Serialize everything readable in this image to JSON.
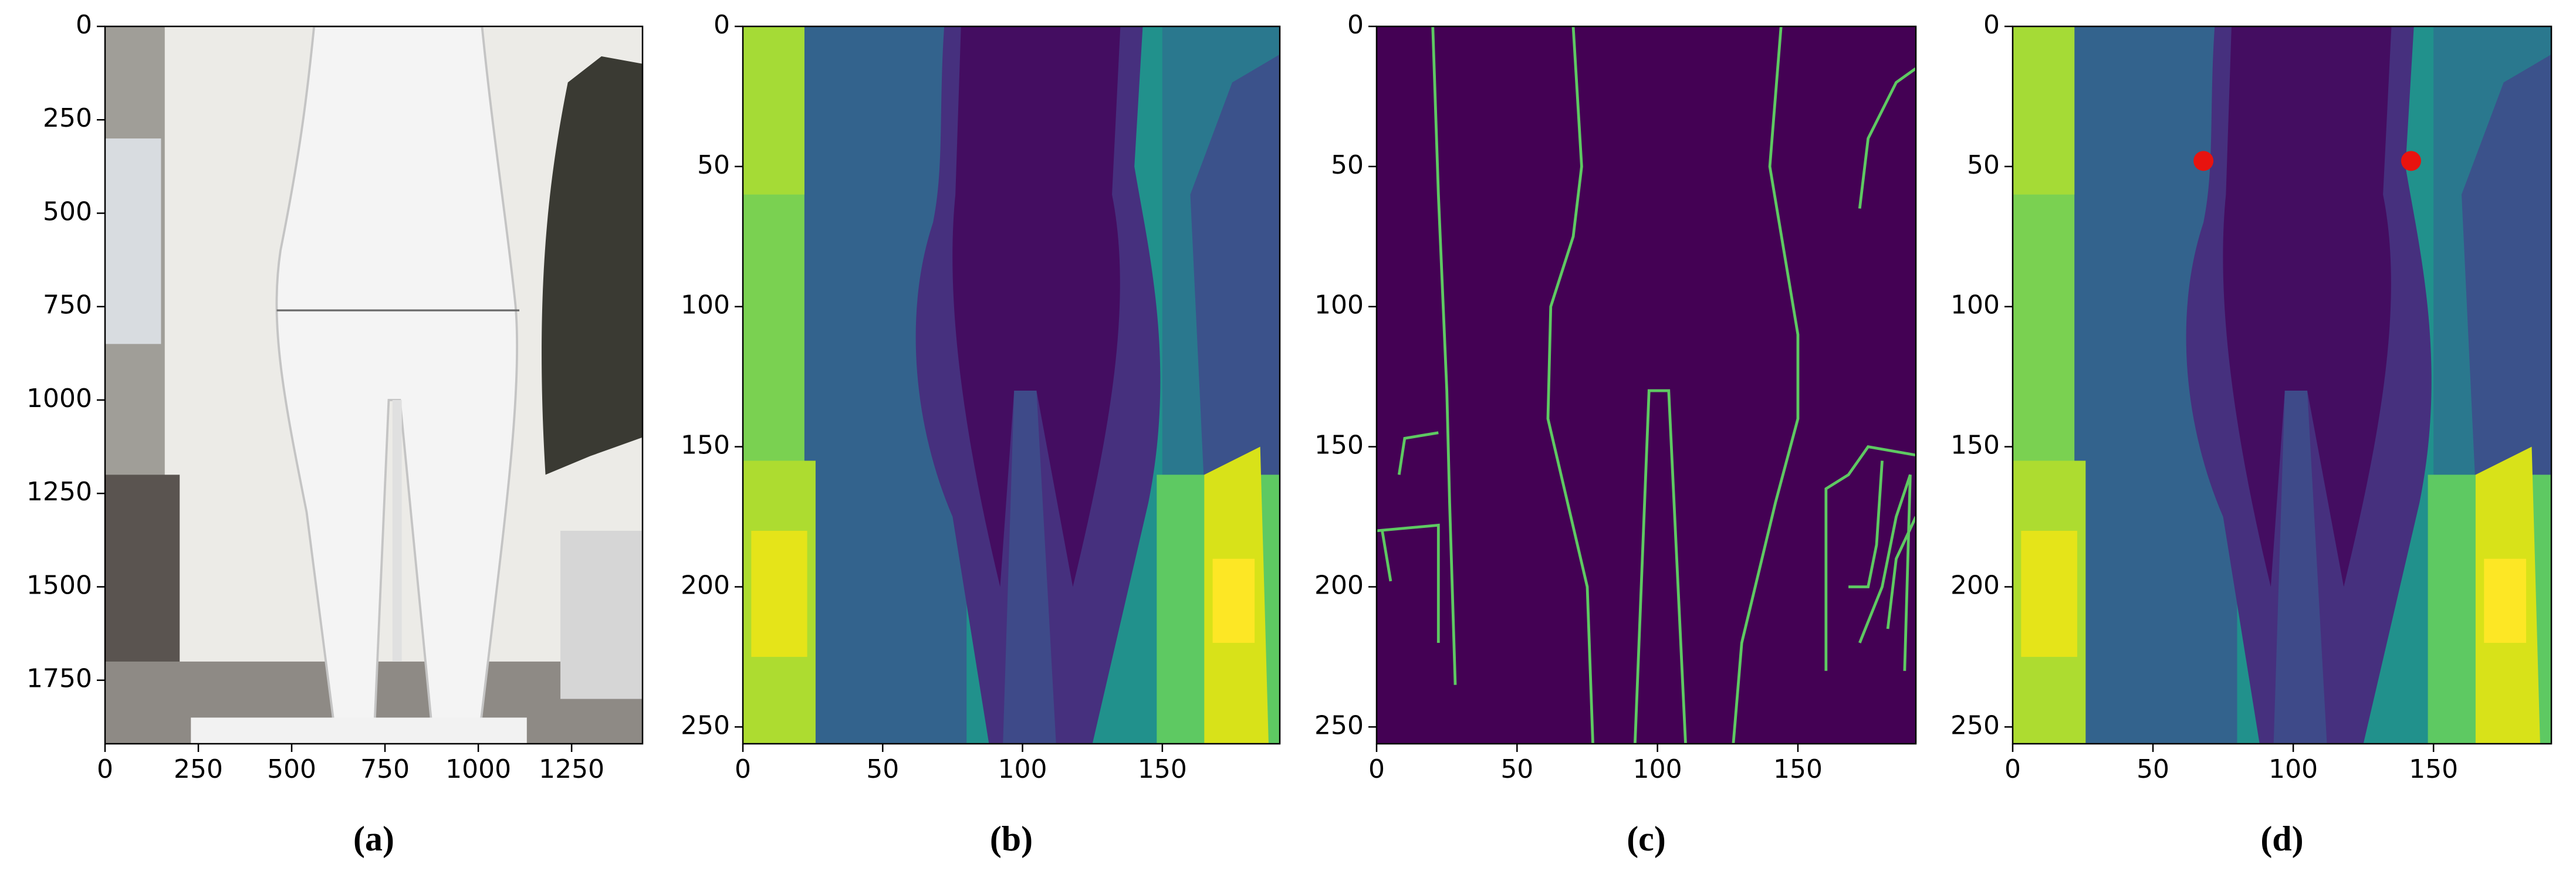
{
  "chart_data": [
    {
      "type": "image",
      "xlim": [
        0,
        1440
      ],
      "ylim": [
        1920,
        0
      ],
      "xticks": [
        0,
        250,
        500,
        750,
        1000,
        1250
      ],
      "yticks": [
        0,
        250,
        500,
        750,
        1000,
        1250,
        1500,
        1750
      ],
      "caption": "(a)"
    },
    {
      "type": "image",
      "xlim": [
        0,
        192
      ],
      "ylim": [
        256,
        0
      ],
      "xticks": [
        0,
        50,
        100,
        150
      ],
      "yticks": [
        0,
        50,
        100,
        150,
        200,
        250
      ],
      "caption": "(b)"
    },
    {
      "type": "image",
      "xlim": [
        0,
        192
      ],
      "ylim": [
        256,
        0
      ],
      "xticks": [
        0,
        50,
        100,
        150
      ],
      "yticks": [
        0,
        50,
        100,
        150,
        200,
        250
      ],
      "caption": "(c)"
    },
    {
      "type": "scatter",
      "x": [
        68,
        142
      ],
      "values": [
        48,
        48
      ],
      "color": "#e8130f",
      "xlim": [
        0,
        192
      ],
      "ylim": [
        256,
        0
      ],
      "xticks": [
        0,
        50,
        100,
        150
      ],
      "yticks": [
        0,
        50,
        100,
        150,
        200,
        250
      ],
      "caption": "(d)"
    }
  ]
}
